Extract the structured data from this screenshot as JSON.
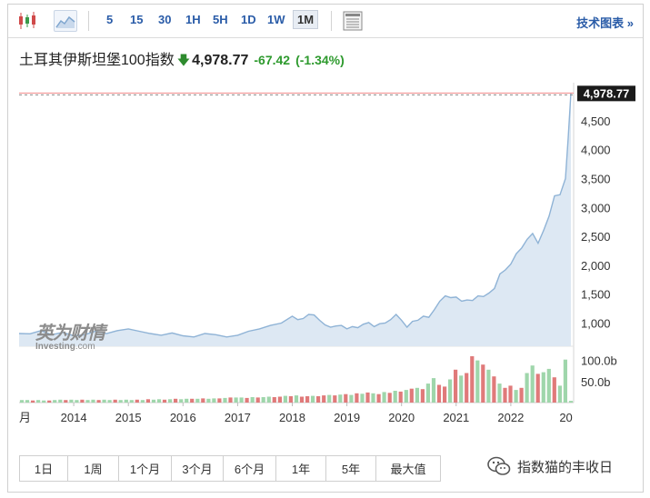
{
  "toolbar": {
    "icons": [
      "candlestick-chart-icon",
      "area-chart-icon",
      "table-icon"
    ],
    "timeframes": [
      "5",
      "15",
      "30",
      "1H",
      "5H",
      "1D",
      "1W",
      "1M"
    ],
    "selected_timeframe": "1M",
    "tech_chart_link": "技术图表 »"
  },
  "quote": {
    "name": "土耳其伊斯坦堡100指数",
    "arrow": "🡇",
    "price": "4,978.77",
    "change": "-67.42",
    "change_pct": "(-1.34%)"
  },
  "watermark": {
    "cn": "英为财情",
    "en_bold": "Investing",
    "en_rest": ".com"
  },
  "periods": [
    "1日",
    "1周",
    "1个月",
    "3个月",
    "6个月",
    "1年",
    "5年",
    "最大值"
  ],
  "footer": {
    "wechat_label": "指数猫的丰收日"
  },
  "colors": {
    "line": "#8fb3d6",
    "area": "#dde8f3",
    "up_volume": "#9fd6ab",
    "down_volume": "#e07a7a",
    "price_tag": "#1a1a1a",
    "reference_line": "#f28a8a"
  },
  "chart_data": {
    "type": "area",
    "x_tick_labels": [
      "月",
      "2014",
      "2015",
      "2016",
      "2017",
      "2018",
      "2019",
      "2020",
      "2021",
      "2022",
      "20"
    ],
    "y_tick_labels": [
      "1,000",
      "1,500",
      "2,000",
      "2,500",
      "3,000",
      "3,500",
      "4,000",
      "4,500"
    ],
    "y_ticks": [
      1000,
      1500,
      2000,
      2500,
      3000,
      3500,
      4000,
      4500
    ],
    "ylim": [
      600,
      5000
    ],
    "last_value_label": "4,978.77",
    "last_value": 4978.77,
    "xlim": [
      2013.0,
      2023.15
    ],
    "series": [
      {
        "x": [
          2013.0,
          2013.2,
          2013.4,
          2013.6,
          2013.8,
          2014.0,
          2014.2,
          2014.4,
          2014.6,
          2014.8,
          2015.0,
          2015.2,
          2015.4,
          2015.6,
          2015.8,
          2016.0,
          2016.2,
          2016.4,
          2016.6,
          2016.8,
          2017.0,
          2017.2,
          2017.4,
          2017.6,
          2017.8,
          2018.0,
          2018.1,
          2018.2,
          2018.3,
          2018.4,
          2018.5,
          2018.6,
          2018.7,
          2018.8,
          2018.9,
          2019.0,
          2019.1,
          2019.2,
          2019.3,
          2019.4,
          2019.5,
          2019.6,
          2019.7,
          2019.8,
          2019.9,
          2020.0,
          2020.1,
          2020.2,
          2020.3,
          2020.4,
          2020.5,
          2020.6,
          2020.7,
          2020.8,
          2020.9,
          2021.0,
          2021.1,
          2021.2,
          2021.3,
          2021.4,
          2021.5,
          2021.6,
          2021.7,
          2021.8,
          2021.9,
          2022.0,
          2022.1,
          2022.2,
          2022.3,
          2022.4,
          2022.5,
          2022.6,
          2022.7,
          2022.8,
          2022.9,
          2023.0,
          2023.05,
          2023.1
        ],
        "y": [
          820,
          815,
          870,
          800,
          840,
          780,
          800,
          860,
          820,
          870,
          900,
          860,
          820,
          790,
          830,
          780,
          760,
          820,
          800,
          760,
          790,
          860,
          900,
          960,
          1000,
          1120,
          1060,
          1080,
          1150,
          1140,
          1050,
          970,
          930,
          950,
          960,
          900,
          940,
          920,
          980,
          1010,
          940,
          990,
          1000,
          1060,
          1150,
          1050,
          930,
          1030,
          1050,
          1120,
          1100,
          1230,
          1380,
          1470,
          1440,
          1450,
          1380,
          1400,
          1390,
          1470,
          1460,
          1520,
          1600,
          1850,
          1920,
          2020,
          2200,
          2300,
          2450,
          2550,
          2380,
          2600,
          2850,
          3200,
          3220,
          3500,
          4200,
          4978.77
        ]
      }
    ],
    "volume": {
      "axis_labels": [
        "100.0b",
        "50.0b"
      ],
      "axis_values": [
        100,
        50
      ],
      "max": 125,
      "bars": [
        {
          "v": 6,
          "up": true
        },
        {
          "v": 6,
          "up": true
        },
        {
          "v": 5,
          "up": false
        },
        {
          "v": 6,
          "up": true
        },
        {
          "v": 5,
          "up": true
        },
        {
          "v": 5,
          "up": false
        },
        {
          "v": 6,
          "up": true
        },
        {
          "v": 7,
          "up": true
        },
        {
          "v": 6,
          "up": false
        },
        {
          "v": 7,
          "up": true
        },
        {
          "v": 6,
          "up": true
        },
        {
          "v": 7,
          "up": false
        },
        {
          "v": 6,
          "up": true
        },
        {
          "v": 7,
          "up": true
        },
        {
          "v": 6,
          "up": false
        },
        {
          "v": 7,
          "up": true
        },
        {
          "v": 6,
          "up": true
        },
        {
          "v": 7,
          "up": false
        },
        {
          "v": 6,
          "up": true
        },
        {
          "v": 7,
          "up": true
        },
        {
          "v": 6,
          "up": true
        },
        {
          "v": 7,
          "up": false
        },
        {
          "v": 6,
          "up": true
        },
        {
          "v": 8,
          "up": false
        },
        {
          "v": 7,
          "up": true
        },
        {
          "v": 8,
          "up": true
        },
        {
          "v": 7,
          "up": false
        },
        {
          "v": 8,
          "up": true
        },
        {
          "v": 9,
          "up": false
        },
        {
          "v": 8,
          "up": true
        },
        {
          "v": 9,
          "up": true
        },
        {
          "v": 9,
          "up": false
        },
        {
          "v": 9,
          "up": true
        },
        {
          "v": 10,
          "up": false
        },
        {
          "v": 9,
          "up": true
        },
        {
          "v": 10,
          "up": true
        },
        {
          "v": 10,
          "up": false
        },
        {
          "v": 11,
          "up": true
        },
        {
          "v": 12,
          "up": false
        },
        {
          "v": 12,
          "up": true
        },
        {
          "v": 12,
          "up": true
        },
        {
          "v": 11,
          "up": false
        },
        {
          "v": 13,
          "up": true
        },
        {
          "v": 12,
          "up": false
        },
        {
          "v": 13,
          "up": true
        },
        {
          "v": 14,
          "up": true
        },
        {
          "v": 13,
          "up": false
        },
        {
          "v": 14,
          "up": false
        },
        {
          "v": 16,
          "up": true
        },
        {
          "v": 15,
          "up": false
        },
        {
          "v": 17,
          "up": true
        },
        {
          "v": 14,
          "up": false
        },
        {
          "v": 15,
          "up": false
        },
        {
          "v": 16,
          "up": true
        },
        {
          "v": 15,
          "up": false
        },
        {
          "v": 17,
          "up": false
        },
        {
          "v": 18,
          "up": true
        },
        {
          "v": 17,
          "up": false
        },
        {
          "v": 19,
          "up": true
        },
        {
          "v": 20,
          "up": false
        },
        {
          "v": 18,
          "up": true
        },
        {
          "v": 22,
          "up": false
        },
        {
          "v": 21,
          "up": true
        },
        {
          "v": 24,
          "up": false
        },
        {
          "v": 22,
          "up": true
        },
        {
          "v": 20,
          "up": false
        },
        {
          "v": 25,
          "up": true
        },
        {
          "v": 23,
          "up": false
        },
        {
          "v": 28,
          "up": true
        },
        {
          "v": 26,
          "up": false
        },
        {
          "v": 30,
          "up": true
        },
        {
          "v": 33,
          "up": false
        },
        {
          "v": 35,
          "up": true
        },
        {
          "v": 32,
          "up": false
        },
        {
          "v": 45,
          "up": true
        },
        {
          "v": 58,
          "up": true
        },
        {
          "v": 42,
          "up": false
        },
        {
          "v": 38,
          "up": false
        },
        {
          "v": 55,
          "up": true
        },
        {
          "v": 78,
          "up": false
        },
        {
          "v": 64,
          "up": true
        },
        {
          "v": 70,
          "up": false
        },
        {
          "v": 110,
          "up": false
        },
        {
          "v": 100,
          "up": true
        },
        {
          "v": 90,
          "up": false
        },
        {
          "v": 78,
          "up": true
        },
        {
          "v": 62,
          "up": false
        },
        {
          "v": 45,
          "up": true
        },
        {
          "v": 35,
          "up": false
        },
        {
          "v": 40,
          "up": false
        },
        {
          "v": 30,
          "up": true
        },
        {
          "v": 35,
          "up": false
        },
        {
          "v": 70,
          "up": true
        },
        {
          "v": 88,
          "up": true
        },
        {
          "v": 68,
          "up": false
        },
        {
          "v": 72,
          "up": true
        },
        {
          "v": 80,
          "up": true
        },
        {
          "v": 60,
          "up": false
        },
        {
          "v": 40,
          "up": true
        },
        {
          "v": 102,
          "up": true
        },
        {
          "v": 4,
          "up": true
        }
      ]
    }
  }
}
